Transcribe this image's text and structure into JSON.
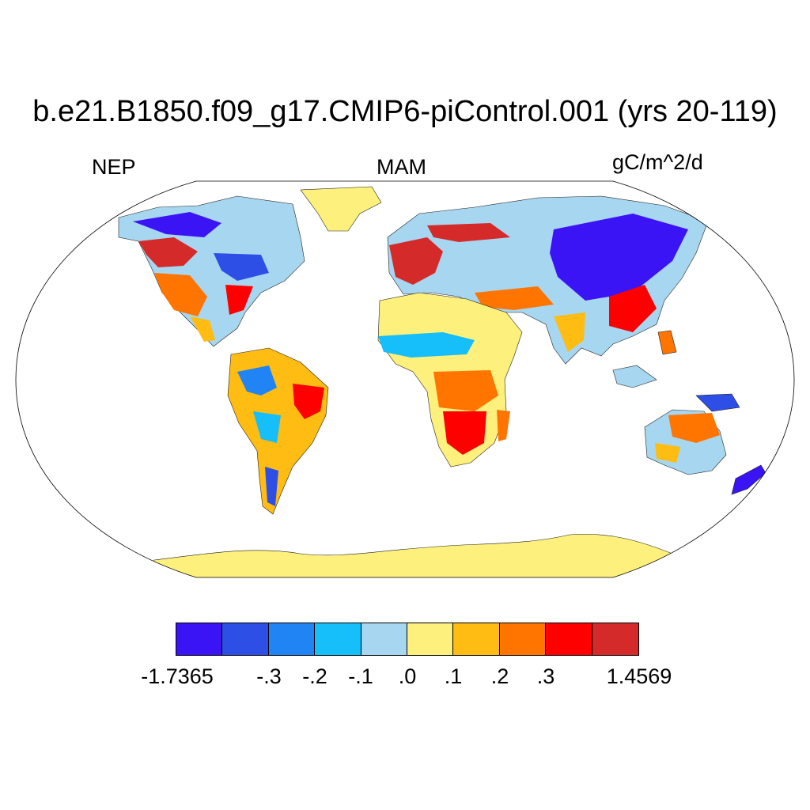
{
  "title": "b.e21.B1850.f09_g17.CMIP6-piControl.001 (yrs 20-119)",
  "left_label": "NEP",
  "center_label": "MAM",
  "units": "gC/m^2/d",
  "colorbar": {
    "colors": [
      "#3a14f5",
      "#2e4fe6",
      "#2184f5",
      "#16befa",
      "#a7d6f0",
      "#fdf07c",
      "#ffbc12",
      "#ff7500",
      "#ff0000",
      "#d42a2a"
    ],
    "ticks": [
      "-1.7365",
      "-.3",
      "-.2",
      "-.1",
      ".0",
      ".1",
      ".2",
      ".3",
      "1.4569"
    ]
  }
}
